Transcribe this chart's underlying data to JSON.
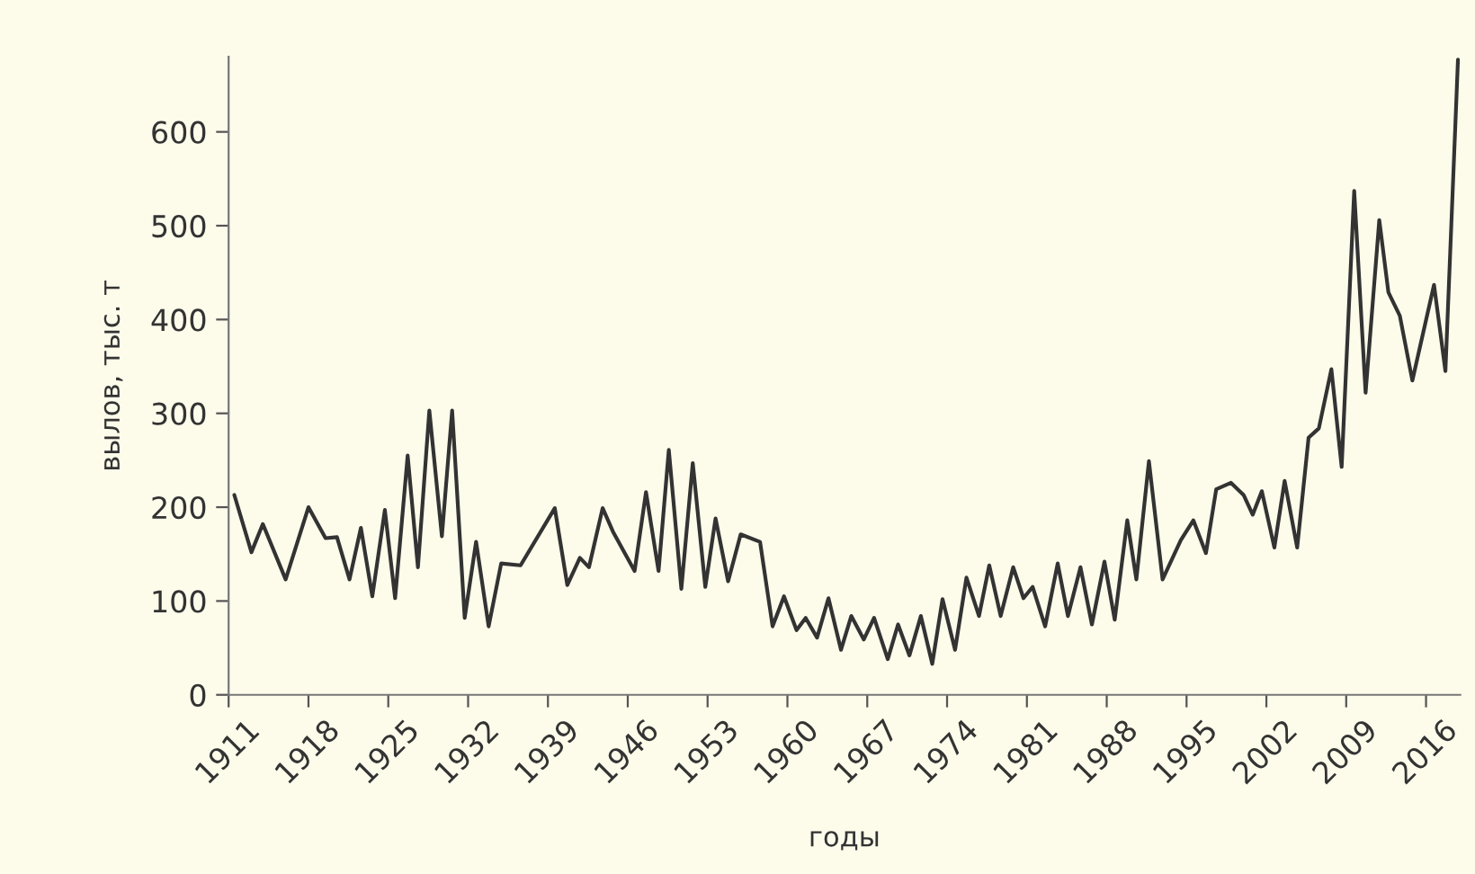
{
  "chart_data": {
    "type": "line",
    "xlabel": "годы",
    "ylabel": "вылов, тыс. т",
    "series": [
      {
        "color": "#333333",
        "x": [
          1911.5,
          1913,
          1914,
          1916,
          1918,
          1919.5,
          1920.5,
          1921.6,
          1922.6,
          1923.6,
          1924.7,
          1925.6,
          1926.7,
          1927.6,
          1928.6,
          1929.7,
          1930.6,
          1931.7,
          1932.7,
          1933.8,
          1934.9,
          1936.6,
          1939.6,
          1940.7,
          1941.8,
          1942.6,
          1943.8,
          1944.7,
          1946.6,
          1947.6,
          1948.7,
          1949.6,
          1950.7,
          1951.7,
          1952.8,
          1953.7,
          1954.8,
          1955.9,
          1957.6,
          1958.7,
          1959.7,
          1960.8,
          1961.6,
          1962.6,
          1963.6,
          1964.7,
          1965.6,
          1966.7,
          1967.6,
          1968.8,
          1969.7,
          1970.7,
          1971.7,
          1972.7,
          1973.6,
          1974.7,
          1975.7,
          1976.8,
          1977.7,
          1978.7,
          1979.8,
          1980.7,
          1981.5,
          1982.6,
          1983.7,
          1984.6,
          1985.7,
          1986.7,
          1987.8,
          1988.7,
          1989.8,
          1990.6,
          1991.7,
          1992.9,
          1994.5,
          1995.6,
          1996.7,
          1997.6,
          1998.9,
          2000,
          2000.8,
          2001.6,
          2002.7,
          2003.6,
          2004.7,
          2005.7,
          2006.6,
          2007.7,
          2008.6,
          2009.7,
          2010.7,
          2011.9,
          2012.7,
          2013.7,
          2014.8,
          2016.7,
          2017.7,
          2018.8
        ],
        "values": [
          213,
          152,
          182,
          123,
          200,
          167,
          168,
          123,
          178,
          105,
          197,
          103,
          255,
          136,
          303,
          169,
          303,
          82,
          163,
          73,
          140,
          138,
          199,
          117,
          146,
          136,
          199,
          174,
          132,
          216,
          132,
          261,
          113,
          247,
          115,
          188,
          121,
          171,
          163,
          73,
          105,
          69,
          82,
          61,
          103,
          48,
          84,
          59,
          82,
          38,
          75,
          42,
          84,
          33,
          102,
          48,
          125,
          84,
          138,
          84,
          136,
          103,
          115,
          73,
          140,
          84,
          136,
          75,
          142,
          80,
          186,
          123,
          249,
          123,
          165,
          186,
          151,
          219,
          226,
          213,
          192,
          217,
          157,
          228,
          157,
          274,
          284,
          347,
          243,
          537,
          322,
          506,
          429,
          404,
          335,
          437,
          345,
          677
        ]
      }
    ],
    "xlim": [
      1911,
      2019
    ],
    "xticks": [
      1911,
      1918,
      1925,
      1932,
      1939,
      1946,
      1953,
      1960,
      1967,
      1974,
      1981,
      1988,
      1995,
      2002,
      2009,
      2016
    ],
    "ylim": [
      0,
      680
    ],
    "yticks": [
      0,
      100,
      200,
      300,
      400,
      500,
      600
    ],
    "grid": false,
    "legend": false
  }
}
